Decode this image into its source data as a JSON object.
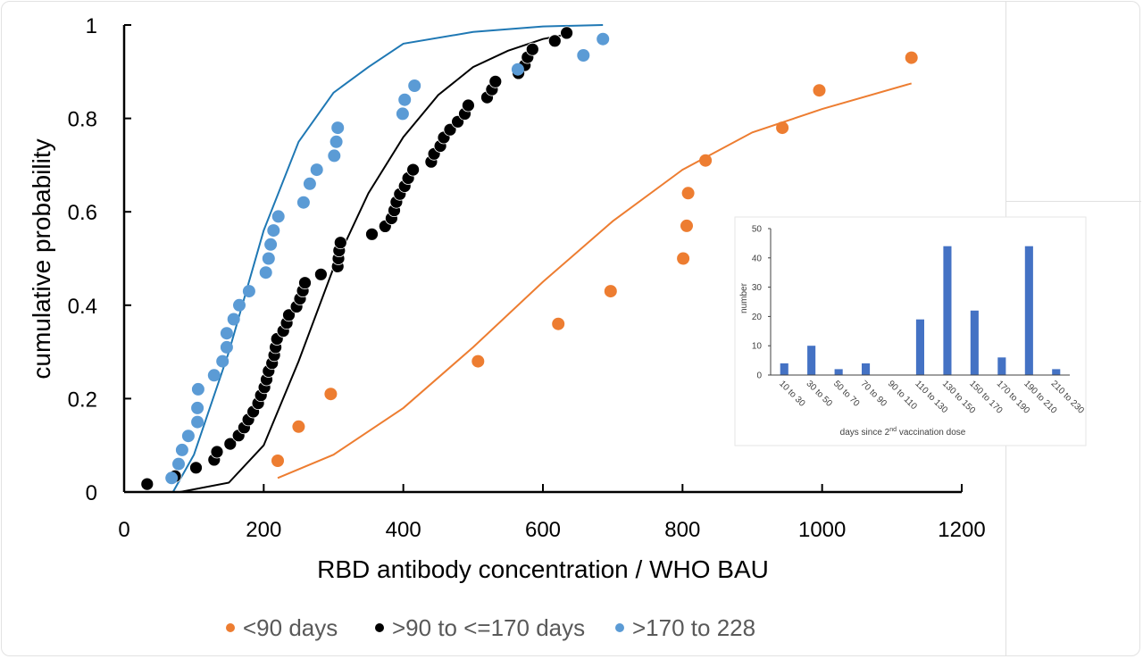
{
  "chart_data": [
    {
      "type": "scatter",
      "title": "",
      "xlabel": "RBD antibody concentration / WHO BAU",
      "ylabel": "cumulative probability",
      "xlim": [
        0,
        1200
      ],
      "ylim": [
        0,
        1
      ],
      "xticks": [
        "0",
        "200",
        "400",
        "600",
        "800",
        "1000",
        "1200"
      ],
      "yticks": [
        "0",
        "0.2",
        "0.4",
        "0.6",
        "0.8",
        "1"
      ],
      "grid": false,
      "legend_position": "bottom",
      "series": [
        {
          "name": "<90 days",
          "color": "#ED7D31",
          "points": [
            [
              220,
              0.067
            ],
            [
              250,
              0.14
            ],
            [
              296,
              0.21
            ],
            [
              507,
              0.28
            ],
            [
              622,
              0.36
            ],
            [
              697,
              0.43
            ],
            [
              801,
              0.5
            ],
            [
              806,
              0.57
            ],
            [
              808,
              0.64
            ],
            [
              833,
              0.71
            ],
            [
              943,
              0.78
            ],
            [
              996,
              0.86
            ],
            [
              1128,
              0.93
            ]
          ],
          "fit": [
            [
              220,
              0.03
            ],
            [
              300,
              0.08
            ],
            [
              400,
              0.18
            ],
            [
              500,
              0.31
            ],
            [
              600,
              0.45
            ],
            [
              700,
              0.58
            ],
            [
              800,
              0.69
            ],
            [
              900,
              0.77
            ],
            [
              1000,
              0.82
            ],
            [
              1128,
              0.875
            ]
          ]
        },
        {
          "name": ">90 to <=170 days",
          "color": "#000000",
          "points": [
            [
              33,
              0.017
            ],
            [
              73,
              0.034
            ],
            [
              103,
              0.052
            ],
            [
              129,
              0.069
            ],
            [
              133,
              0.086
            ],
            [
              152,
              0.103
            ],
            [
              164,
              0.121
            ],
            [
              172,
              0.138
            ],
            [
              178,
              0.155
            ],
            [
              185,
              0.172
            ],
            [
              192,
              0.19
            ],
            [
              196,
              0.207
            ],
            [
              201,
              0.224
            ],
            [
              204,
              0.241
            ],
            [
              207,
              0.259
            ],
            [
              212,
              0.276
            ],
            [
              215,
              0.293
            ],
            [
              217,
              0.31
            ],
            [
              219,
              0.328
            ],
            [
              228,
              0.345
            ],
            [
              233,
              0.362
            ],
            [
              236,
              0.379
            ],
            [
              247,
              0.397
            ],
            [
              252,
              0.414
            ],
            [
              256,
              0.431
            ],
            [
              259,
              0.448
            ],
            [
              282,
              0.466
            ],
            [
              306,
              0.483
            ],
            [
              307,
              0.5
            ],
            [
              308,
              0.517
            ],
            [
              310,
              0.534
            ],
            [
              355,
              0.552
            ],
            [
              374,
              0.569
            ],
            [
              383,
              0.586
            ],
            [
              387,
              0.603
            ],
            [
              390,
              0.621
            ],
            [
              395,
              0.638
            ],
            [
              402,
              0.655
            ],
            [
              407,
              0.672
            ],
            [
              414,
              0.69
            ],
            [
              440,
              0.707
            ],
            [
              444,
              0.724
            ],
            [
              453,
              0.741
            ],
            [
              458,
              0.759
            ],
            [
              467,
              0.776
            ],
            [
              478,
              0.793
            ],
            [
              488,
              0.81
            ],
            [
              493,
              0.828
            ],
            [
              520,
              0.845
            ],
            [
              527,
              0.862
            ],
            [
              532,
              0.879
            ],
            [
              565,
              0.897
            ],
            [
              574,
              0.914
            ],
            [
              578,
              0.931
            ],
            [
              585,
              0.948
            ],
            [
              617,
              0.966
            ],
            [
              634,
              0.983
            ]
          ],
          "fit": [
            [
              80,
              0.0
            ],
            [
              150,
              0.02
            ],
            [
              200,
              0.1
            ],
            [
              250,
              0.28
            ],
            [
              300,
              0.48
            ],
            [
              350,
              0.64
            ],
            [
              400,
              0.76
            ],
            [
              450,
              0.85
            ],
            [
              500,
              0.91
            ],
            [
              550,
              0.945
            ],
            [
              600,
              0.97
            ],
            [
              634,
              0.98
            ]
          ]
        },
        {
          "name": ">170 to 228",
          "color": "#5B9BD5",
          "points": [
            [
              68,
              0.03
            ],
            [
              78,
              0.06
            ],
            [
              83,
              0.09
            ],
            [
              92,
              0.12
            ],
            [
              105,
              0.15
            ],
            [
              105,
              0.18
            ],
            [
              106,
              0.22
            ],
            [
              129,
              0.25
            ],
            [
              141,
              0.28
            ],
            [
              147,
              0.31
            ],
            [
              147,
              0.34
            ],
            [
              157,
              0.37
            ],
            [
              165,
              0.4
            ],
            [
              179,
              0.43
            ],
            [
              203,
              0.47
            ],
            [
              207,
              0.5
            ],
            [
              210,
              0.53
            ],
            [
              214,
              0.56
            ],
            [
              221,
              0.59
            ],
            [
              257,
              0.62
            ],
            [
              266,
              0.66
            ],
            [
              276,
              0.69
            ],
            [
              301,
              0.72
            ],
            [
              304,
              0.75
            ],
            [
              306,
              0.78
            ],
            [
              399,
              0.81
            ],
            [
              402,
              0.84
            ],
            [
              416,
              0.87
            ],
            [
              564,
              0.905
            ],
            [
              658,
              0.935
            ],
            [
              686,
              0.97
            ]
          ],
          "fit": [
            [
              70,
              0.0
            ],
            [
              100,
              0.08
            ],
            [
              150,
              0.3
            ],
            [
              200,
              0.56
            ],
            [
              250,
              0.75
            ],
            [
              300,
              0.855
            ],
            [
              350,
              0.91
            ],
            [
              400,
              0.96
            ],
            [
              500,
              0.985
            ],
            [
              600,
              0.997
            ],
            [
              686,
              1.0
            ]
          ],
          "fit_color": "#1F78B4"
        }
      ]
    },
    {
      "type": "bar",
      "title": "",
      "xlabel": "days since 2nd vaccination dose",
      "xlabel_parts": {
        "pre": "days since 2",
        "sup": "nd",
        "post": " vaccination dose"
      },
      "ylabel": "number",
      "ylim": [
        0,
        50
      ],
      "yticks": [
        "0",
        "10",
        "20",
        "30",
        "40",
        "50"
      ],
      "categories": [
        "10 to 30",
        "30 to 50",
        "50 to 70",
        "70 to 90",
        "90 to 110",
        "110 to 130",
        "130 to 150",
        "150 to 170",
        "170 to 190",
        "190 to 210",
        "210 to 230"
      ],
      "values": [
        4,
        10,
        2,
        4,
        0,
        19,
        44,
        22,
        6,
        44,
        2
      ],
      "color": "#4472C4",
      "position": "inset"
    }
  ]
}
